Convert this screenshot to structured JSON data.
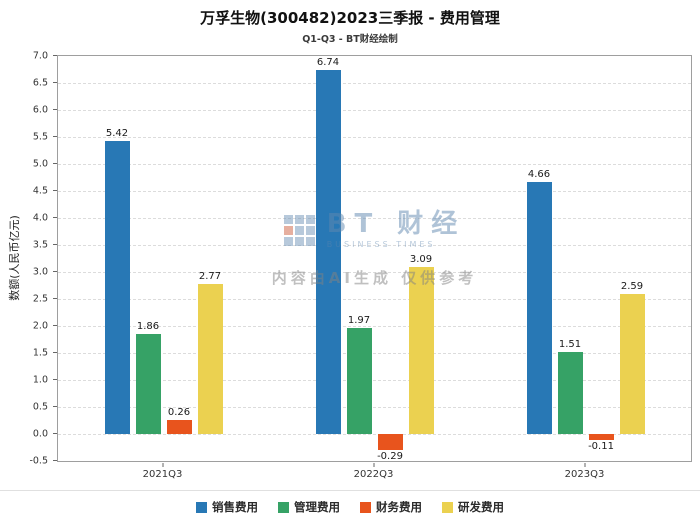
{
  "header": {
    "title": "万孚生物(300482)2023三季报 - 费用管理",
    "subtitle": "Q1-Q3 - BT财经绘制"
  },
  "watermark": {
    "logo_text": "BT 财经",
    "logo_sub": "BUSINESS TIMES",
    "ai_note": "内容由AI生成 仅供参考"
  },
  "chart_data": {
    "type": "bar",
    "title": "万孚生物(300482)2023三季报 - 费用管理",
    "subtitle": "Q1-Q3 - BT财经绘制",
    "categories": [
      "2021Q3",
      "2022Q3",
      "2023Q3"
    ],
    "series": [
      {
        "name": "销售费用",
        "color": "#2878b5",
        "values": [
          5.42,
          6.74,
          4.66
        ]
      },
      {
        "name": "管理费用",
        "color": "#36a266",
        "values": [
          1.86,
          1.97,
          1.51
        ]
      },
      {
        "name": "财务费用",
        "color": "#e8541d",
        "values": [
          0.26,
          -0.29,
          -0.11
        ]
      },
      {
        "name": "研发费用",
        "color": "#ebd150",
        "values": [
          2.77,
          3.09,
          2.59
        ]
      }
    ],
    "xlabel": "",
    "ylabel": "数额(人民币亿元)",
    "ylim": [
      -0.5,
      7.0
    ],
    "ytick_step": 0.5,
    "grid": "horizontal-dashed",
    "legend_position": "bottom"
  }
}
